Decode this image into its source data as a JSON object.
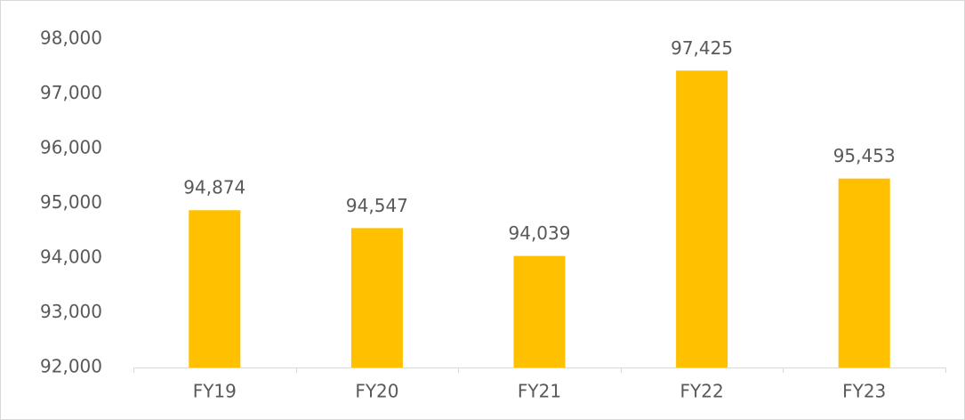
{
  "chart_data": {
    "type": "bar",
    "categories": [
      "FY19",
      "FY20",
      "FY21",
      "FY22",
      "FY23"
    ],
    "values": [
      94874,
      94547,
      94039,
      97425,
      95453
    ],
    "value_labels": [
      "94,874",
      "94,547",
      "94,039",
      "97,425",
      "95,453"
    ],
    "color": "#ffc000",
    "ylim": [
      92000,
      98000
    ],
    "yticks": [
      {
        "value": 92000,
        "label": "92,000"
      },
      {
        "value": 93000,
        "label": "93,000"
      },
      {
        "value": 94000,
        "label": "94,000"
      },
      {
        "value": 95000,
        "label": "95,000"
      },
      {
        "value": 96000,
        "label": "96,000"
      },
      {
        "value": 97000,
        "label": "97,000"
      },
      {
        "value": 98000,
        "label": "98,000"
      }
    ],
    "grid": false
  }
}
